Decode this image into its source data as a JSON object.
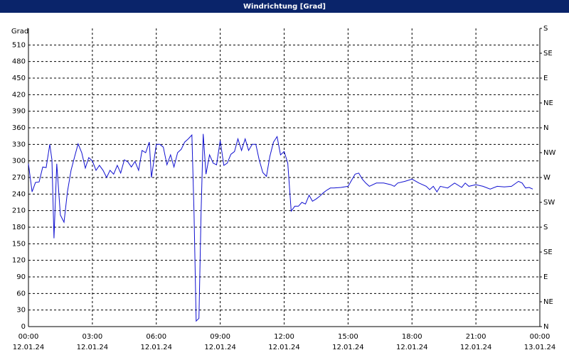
{
  "chart_data": {
    "type": "line",
    "title": "Windrichtung [Grad]",
    "ylabel": "Grad",
    "x": [
      0,
      0.17,
      0.33,
      0.5,
      0.67,
      0.83,
      1.0,
      1.1,
      1.2,
      1.33,
      1.5,
      1.67,
      1.83,
      2.0,
      2.17,
      2.33,
      2.5,
      2.67,
      2.83,
      3.0,
      3.17,
      3.33,
      3.5,
      3.67,
      3.83,
      4.0,
      4.17,
      4.33,
      4.5,
      4.67,
      4.83,
      5.0,
      5.17,
      5.33,
      5.5,
      5.67,
      5.77,
      6.0,
      6.17,
      6.33,
      6.5,
      6.67,
      6.83,
      7.0,
      7.17,
      7.33,
      7.5,
      7.67,
      7.77,
      7.87,
      8.0,
      8.1,
      8.2,
      8.33,
      8.5,
      8.67,
      8.83,
      9.0,
      9.17,
      9.33,
      9.5,
      9.67,
      9.83,
      10.0,
      10.17,
      10.33,
      10.5,
      10.67,
      10.83,
      11.0,
      11.17,
      11.33,
      11.5,
      11.67,
      11.83,
      12.0,
      12.17,
      12.33,
      12.5,
      12.67,
      12.83,
      13.0,
      13.17,
      13.33,
      13.5,
      13.67,
      13.83,
      14.0,
      14.17,
      14.33,
      14.67,
      15.0,
      15.33,
      15.5,
      15.67,
      15.83,
      16.0,
      16.33,
      16.67,
      17.0,
      17.17,
      17.33,
      17.67,
      18.0,
      18.33,
      18.67,
      18.83,
      19.0,
      19.17,
      19.33,
      19.67,
      20.0,
      20.33,
      20.5,
      20.67,
      21.0,
      21.33,
      21.67,
      22.0,
      22.33,
      22.67,
      23.0,
      23.17,
      23.33,
      23.5,
      23.67
    ],
    "values": [
      295,
      244,
      261,
      262,
      289,
      288,
      330,
      302,
      160,
      295,
      202,
      189,
      244,
      283,
      308,
      331,
      315,
      287,
      306,
      300,
      283,
      292,
      283,
      270,
      283,
      276,
      292,
      278,
      302,
      298,
      289,
      299,
      283,
      319,
      315,
      334,
      270,
      330,
      330,
      325,
      293,
      311,
      289,
      315,
      321,
      334,
      340,
      347,
      206,
      10,
      15,
      206,
      349,
      276,
      311,
      296,
      293,
      337,
      292,
      296,
      312,
      317,
      340,
      319,
      340,
      319,
      330,
      330,
      302,
      279,
      272,
      308,
      334,
      344,
      311,
      317,
      296,
      209,
      218,
      218,
      225,
      222,
      238,
      227,
      231,
      236,
      242,
      247,
      251,
      251,
      252,
      254,
      276,
      278,
      267,
      260,
      254,
      260,
      260,
      257,
      254,
      260,
      263,
      267,
      260,
      254,
      248,
      254,
      244,
      254,
      251,
      260,
      252,
      260,
      254,
      257,
      254,
      249,
      254,
      253,
      254,
      263,
      260,
      251,
      252,
      249
    ],
    "color": "#1010d0",
    "xlim": [
      0,
      24
    ],
    "xticks": [
      {
        "value": 0,
        "label": "00:00",
        "date": "12.01.24"
      },
      {
        "value": 3,
        "label": "03:00",
        "date": "12.01.24"
      },
      {
        "value": 6,
        "label": "06:00",
        "date": "12.01.24"
      },
      {
        "value": 9,
        "label": "09:00",
        "date": "12.01.24"
      },
      {
        "value": 12,
        "label": "12:00",
        "date": "12.01.24"
      },
      {
        "value": 15,
        "label": "15:00",
        "date": "12.01.24"
      },
      {
        "value": 18,
        "label": "18:00",
        "date": "12.01.24"
      },
      {
        "value": 21,
        "label": "21:00",
        "date": "12.01.24"
      },
      {
        "value": 24,
        "label": "00:00",
        "date": "13.01.24"
      }
    ],
    "ylim": [
      0,
      540
    ],
    "yticks": [
      0,
      30,
      60,
      90,
      120,
      150,
      180,
      210,
      240,
      270,
      300,
      330,
      360,
      390,
      420,
      450,
      480,
      510
    ],
    "y2lim": [
      0,
      540
    ],
    "y2ticks": [
      {
        "value": 0,
        "label": "N"
      },
      {
        "value": 45,
        "label": "NE"
      },
      {
        "value": 90,
        "label": "E"
      },
      {
        "value": 135,
        "label": "SE"
      },
      {
        "value": 180,
        "label": "S"
      },
      {
        "value": 225,
        "label": "SW"
      },
      {
        "value": 270,
        "label": "W"
      },
      {
        "value": 315,
        "label": "NW"
      },
      {
        "value": 360,
        "label": "N"
      },
      {
        "value": 405,
        "label": "NE"
      },
      {
        "value": 450,
        "label": "E"
      },
      {
        "value": 495,
        "label": "SE"
      },
      {
        "value": 540,
        "label": "S"
      }
    ],
    "grid": true
  }
}
